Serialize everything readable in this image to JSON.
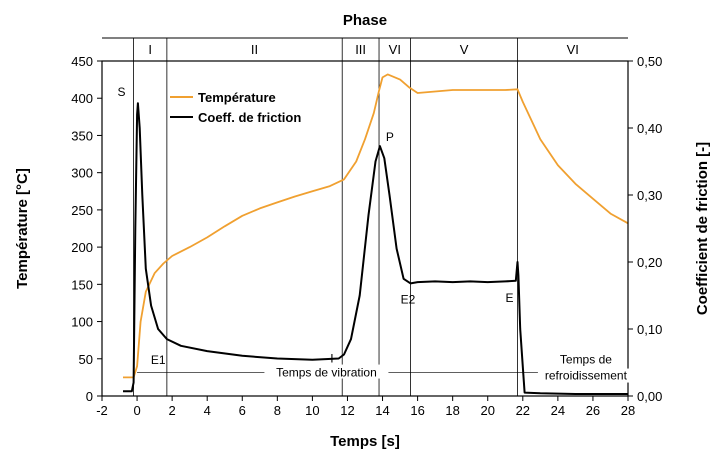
{
  "chart_data": {
    "type": "line",
    "title": "Phase",
    "xlabel": "Temps [s]",
    "ylabel_left": "Température [°C]",
    "ylabel_right": "Coefficient de friction [-]",
    "xlim": [
      -2,
      28
    ],
    "ylim_left": [
      0,
      450
    ],
    "ylim_right": [
      0,
      0.5
    ],
    "x_ticks": [
      "-2",
      "0",
      "2",
      "4",
      "6",
      "8",
      "10",
      "12",
      "14",
      "16",
      "18",
      "20",
      "22",
      "24",
      "26",
      "28"
    ],
    "y_left_ticks": [
      "0",
      "50",
      "100",
      "150",
      "200",
      "250",
      "300",
      "350",
      "400",
      "450"
    ],
    "y_right_ticks": [
      "0,00",
      "0,10",
      "0,20",
      "0,30",
      "0,40",
      "0,50"
    ],
    "grid": false,
    "legend_position": "top-left",
    "colors": {
      "temperature": "#f0a030",
      "friction": "#000000"
    },
    "series": [
      {
        "name": "Température",
        "axis": "left",
        "x": [
          -0.8,
          -0.2,
          0,
          0.2,
          0.5,
          1,
          1.5,
          2,
          3,
          4,
          5,
          6,
          7,
          8,
          9,
          10,
          11,
          11.8,
          12.5,
          13,
          13.5,
          13.8,
          14,
          14.3,
          15,
          15.5,
          16,
          17,
          18,
          19,
          20,
          21,
          21.7,
          22,
          23,
          24,
          25,
          26,
          27,
          28
        ],
        "y": [
          25,
          25,
          40,
          100,
          140,
          165,
          178,
          188,
          200,
          213,
          228,
          242,
          252,
          260,
          268,
          275,
          282,
          291,
          315,
          345,
          380,
          410,
          428,
          432,
          425,
          415,
          407,
          409,
          411,
          411,
          411,
          411,
          412,
          395,
          345,
          310,
          285,
          265,
          245,
          232
        ]
      },
      {
        "name": "Coeff. de friction",
        "axis": "right",
        "x": [
          -0.8,
          -0.3,
          -0.2,
          -0.1,
          0,
          0.05,
          0.15,
          0.3,
          0.5,
          0.8,
          1.2,
          1.7,
          2.5,
          4,
          6,
          8,
          10,
          11.5,
          11.8,
          12.2,
          12.7,
          13.2,
          13.6,
          13.85,
          14.1,
          14.4,
          14.8,
          15.2,
          15.6,
          16,
          17,
          18,
          19,
          20,
          21,
          21.6,
          21.7,
          21.75,
          21.85,
          22.1,
          23,
          25,
          28
        ],
        "y": [
          0.007,
          0.007,
          0.02,
          0.25,
          0.42,
          0.437,
          0.4,
          0.3,
          0.19,
          0.135,
          0.1,
          0.085,
          0.075,
          0.067,
          0.06,
          0.056,
          0.054,
          0.056,
          0.062,
          0.085,
          0.15,
          0.27,
          0.35,
          0.373,
          0.355,
          0.3,
          0.22,
          0.175,
          0.168,
          0.17,
          0.171,
          0.17,
          0.171,
          0.17,
          0.171,
          0.172,
          0.2,
          0.18,
          0.1,
          0.005,
          0.004,
          0.003,
          0.003
        ]
      }
    ],
    "phases": [
      {
        "label": "I",
        "start": -0.2,
        "end": 1.7
      },
      {
        "label": "II",
        "start": 1.7,
        "end": 11.7
      },
      {
        "label": "III",
        "start": 11.7,
        "end": 13.8
      },
      {
        "label": "VI",
        "start": 13.8,
        "end": 15.6
      },
      {
        "label": "V",
        "start": 15.6,
        "end": 21.7
      },
      {
        "label": "VI",
        "start": 21.7,
        "end": 28
      }
    ],
    "phase_boundaries": [
      -0.2,
      1.7,
      11.7,
      13.8,
      15.6,
      21.7
    ],
    "annotations": [
      {
        "text": "S",
        "x": -0.2,
        "y_right": 0.44
      },
      {
        "text": "E1",
        "x": 1.7,
        "y_right": 0.075
      },
      {
        "text": "I",
        "x": 11.7,
        "y_right": 0.056
      },
      {
        "text": "P",
        "x": 13.85,
        "y_right": 0.373
      },
      {
        "text": "E2",
        "x": 15.6,
        "y_right": 0.168
      },
      {
        "text": "E",
        "x": 21.7,
        "y_right": 0.17
      }
    ],
    "vibration_label": "Temps de vibration",
    "cooling_label": [
      "Temps de",
      "refroidissement"
    ],
    "divider_level_right": 0.035
  }
}
